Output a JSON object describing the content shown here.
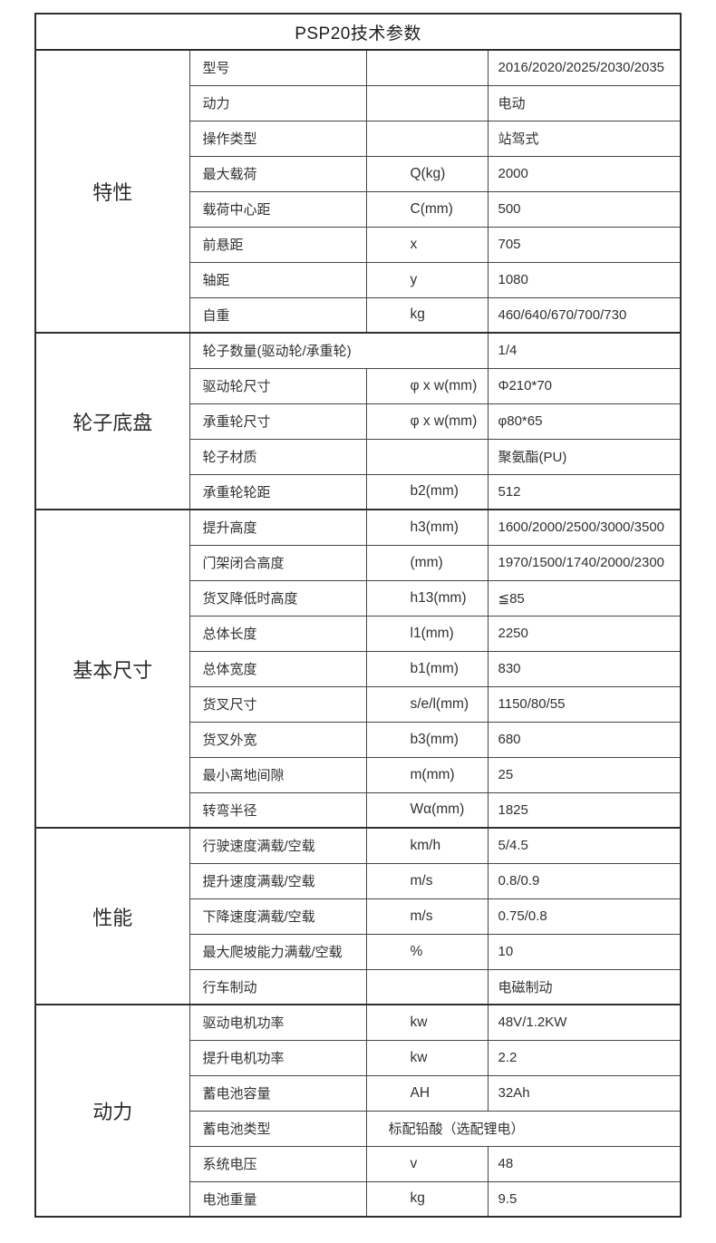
{
  "title": "PSP20技术参数",
  "table": {
    "sections": [
      {
        "label": "特性",
        "rows": [
          {
            "name": "型号",
            "symbol": "",
            "value": "2016/2020/2025/2030/2035"
          },
          {
            "name": "动力",
            "symbol": "",
            "value": "电动"
          },
          {
            "name": "操作类型",
            "symbol": "",
            "value": "站驾式"
          },
          {
            "name": "最大载荷",
            "symbol": "Q(kg)",
            "value": "2000"
          },
          {
            "name": "载荷中心距",
            "symbol": "C(mm)",
            "value": "500"
          },
          {
            "name": "前悬距",
            "symbol": "x",
            "value": "705"
          },
          {
            "name": "轴距",
            "symbol": "y",
            "value": "1080"
          },
          {
            "name": "自重",
            "symbol": "kg",
            "value": "460/640/670/700/730"
          }
        ]
      },
      {
        "label": "轮子底盘",
        "rows": [
          {
            "name": "轮子数量(驱动轮/承重轮)",
            "symbol": "",
            "value": "1/4",
            "name_span": 2
          },
          {
            "name": "驱动轮尺寸",
            "symbol": "φ x w(mm)",
            "value": "Φ210*70"
          },
          {
            "name": "承重轮尺寸",
            "symbol": "φ x w(mm)",
            "value": "φ80*65"
          },
          {
            "name": "轮子材质",
            "symbol": "",
            "value": "聚氨酯(PU)"
          },
          {
            "name": "承重轮轮距",
            "symbol": "b2(mm)",
            "value": "512"
          }
        ]
      },
      {
        "label": "基本尺寸",
        "rows": [
          {
            "name": "提升高度",
            "symbol": "h3(mm)",
            "value": "1600/2000/2500/3000/3500"
          },
          {
            "name": "门架闭合高度",
            "symbol": "(mm)",
            "value": "1970/1500/1740/2000/2300"
          },
          {
            "name": "货叉降低时高度",
            "symbol": "h13(mm)",
            "value": "≦85"
          },
          {
            "name": "总体长度",
            "symbol": "l1(mm)",
            "value": "2250"
          },
          {
            "name": "总体宽度",
            "symbol": "b1(mm)",
            "value": "830"
          },
          {
            "name": "货叉尺寸",
            "symbol": "s/e/l(mm)",
            "value": "1150/80/55"
          },
          {
            "name": "货叉外宽",
            "symbol": "b3(mm)",
            "value": "680"
          },
          {
            "name": "最小离地间隙",
            "symbol": "m(mm)",
            "value": "25"
          },
          {
            "name": "转弯半径",
            "symbol": "Wα(mm)",
            "value": "1825"
          }
        ]
      },
      {
        "label": "性能",
        "rows": [
          {
            "name": "行驶速度满载/空载",
            "symbol": "km/h",
            "value": "5/4.5"
          },
          {
            "name": "提升速度满载/空载",
            "symbol": "m/s",
            "value": "0.8/0.9"
          },
          {
            "name": "下降速度满载/空载",
            "symbol": "m/s",
            "value": "0.75/0.8"
          },
          {
            "name": "最大爬坡能力满载/空载",
            "symbol": "%",
            "value": "10"
          },
          {
            "name": "行车制动",
            "symbol": "",
            "value": "电磁制动"
          }
        ]
      },
      {
        "label": "动力",
        "rows": [
          {
            "name": "驱动电机功率",
            "symbol": "kw",
            "value": "48V/1.2KW"
          },
          {
            "name": "提升电机功率",
            "symbol": "kw",
            "value": "2.2"
          },
          {
            "name": "蓄电池容量",
            "symbol": "AH",
            "value": "32Ah"
          },
          {
            "name": "蓄电池类型",
            "symbol": "",
            "value": "标配铅酸（选配锂电）",
            "value_span": 2
          },
          {
            "name": "系统电压",
            "symbol": "v",
            "value": "48"
          },
          {
            "name": "电池重量",
            "symbol": "kg",
            "value": "9.5"
          }
        ]
      }
    ]
  }
}
